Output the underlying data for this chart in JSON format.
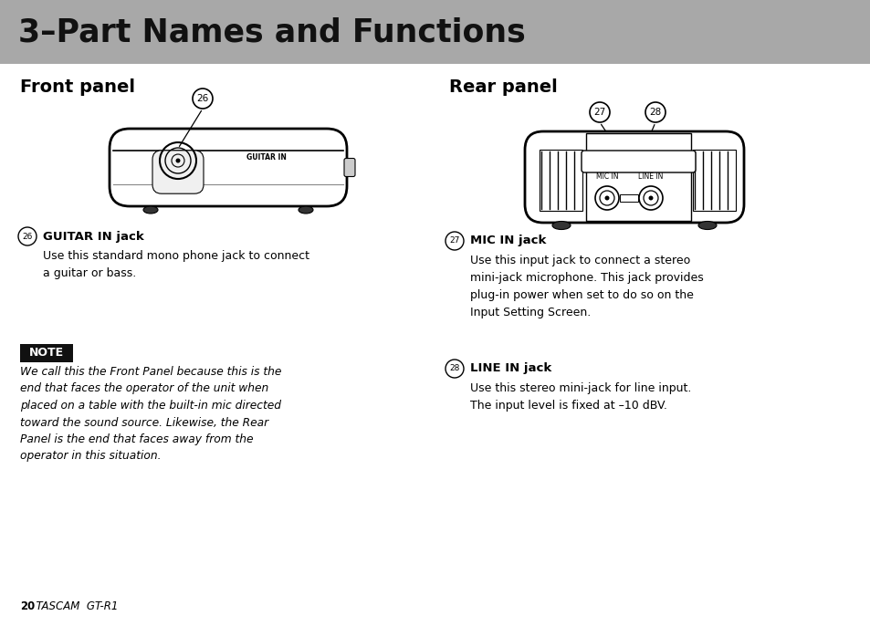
{
  "bg_color": "#ffffff",
  "header_bg": "#a8a8a8",
  "header_text": "3–Part Names and Functions",
  "header_text_color": "#111111",
  "front_panel_title": "Front panel",
  "rear_panel_title": "Rear panel",
  "item26_title": "GUITAR IN jack",
  "item26_desc": "Use this standard mono phone jack to connect\na guitar or bass.",
  "item27_title": "MIC IN jack",
  "item27_desc": "Use this input jack to connect a stereo\nmini-jack microphone. This jack provides\nplug-in power when set to do so on the\nInput Setting Screen.",
  "item28_title": "LINE IN jack",
  "item28_desc": "Use this stereo mini-jack for line input.\nThe input level is fixed at –10 dBV.",
  "note_bg": "#111111",
  "note_text_color": "#ffffff",
  "note_label": "NOTE",
  "note_body": "We call this the Front Panel because this is the\nend that faces the operator of the unit when\nplaced on a table with the built-in mic directed\ntoward the sound source. Likewise, the Rear\nPanel is the end that faces away from the\noperator in this situation.",
  "footer_bold": "20",
  "footer_normal": "  TASCAM  GT-R1"
}
